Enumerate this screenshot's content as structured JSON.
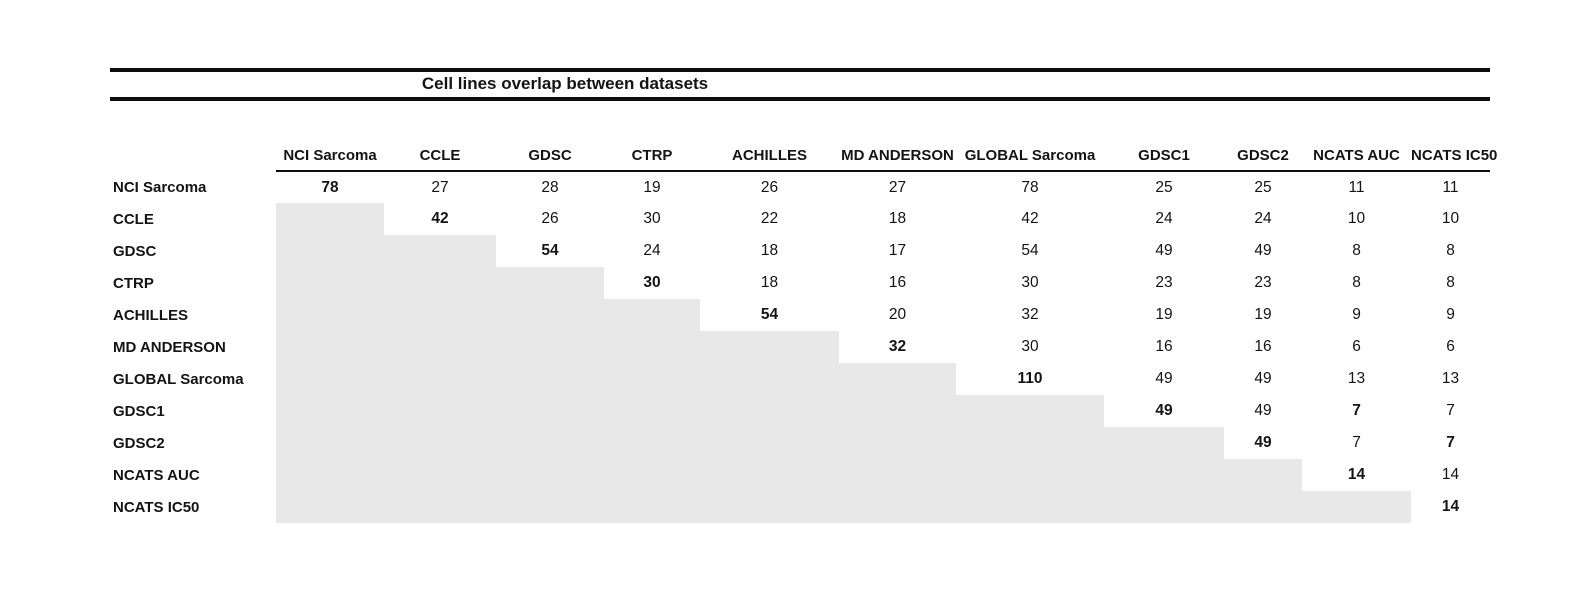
{
  "title": "Cell lines overlap between datasets",
  "table": {
    "columns": [
      "NCI Sarcoma",
      "CCLE",
      "GDSC",
      "CTRP",
      "ACHILLES",
      "MD ANDERSON",
      "GLOBAL Sarcoma",
      "GDSC1",
      "GDSC2",
      "NCATS AUC",
      "NCATS IC50"
    ],
    "rows": [
      {
        "label": "NCI Sarcoma",
        "values": [
          "78",
          "27",
          "28",
          "19",
          "26",
          "27",
          "78",
          "25",
          "25",
          "11",
          "11"
        ],
        "bold_cols": [
          0
        ]
      },
      {
        "label": "CCLE",
        "values": [
          null,
          "42",
          "26",
          "30",
          "22",
          "18",
          "42",
          "24",
          "24",
          "10",
          "10"
        ],
        "bold_cols": [
          1
        ]
      },
      {
        "label": "GDSC",
        "values": [
          null,
          null,
          "54",
          "24",
          "18",
          "17",
          "54",
          "49",
          "49",
          "8",
          "8"
        ],
        "bold_cols": [
          2
        ]
      },
      {
        "label": "CTRP",
        "values": [
          null,
          null,
          null,
          "30",
          "18",
          "16",
          "30",
          "23",
          "23",
          "8",
          "8"
        ],
        "bold_cols": [
          3
        ]
      },
      {
        "label": "ACHILLES",
        "values": [
          null,
          null,
          null,
          null,
          "54",
          "20",
          "32",
          "19",
          "19",
          "9",
          "9"
        ],
        "bold_cols": [
          4
        ]
      },
      {
        "label": "MD ANDERSON",
        "values": [
          null,
          null,
          null,
          null,
          null,
          "32",
          "30",
          "16",
          "16",
          "6",
          "6"
        ],
        "bold_cols": [
          5
        ]
      },
      {
        "label": "GLOBAL Sarcoma",
        "values": [
          null,
          null,
          null,
          null,
          null,
          null,
          "110",
          "49",
          "49",
          "13",
          "13"
        ],
        "bold_cols": [
          6
        ]
      },
      {
        "label": "GDSC1",
        "values": [
          null,
          null,
          null,
          null,
          null,
          null,
          null,
          "49",
          "49",
          "7",
          "7"
        ],
        "bold_cols": [
          7,
          9
        ]
      },
      {
        "label": "GDSC2",
        "values": [
          null,
          null,
          null,
          null,
          null,
          null,
          null,
          null,
          "49",
          "7",
          "7"
        ],
        "bold_cols": [
          8,
          10
        ]
      },
      {
        "label": "NCATS AUC",
        "values": [
          null,
          null,
          null,
          null,
          null,
          null,
          null,
          null,
          null,
          "14",
          "14"
        ],
        "bold_cols": [
          9
        ]
      },
      {
        "label": "NCATS IC50",
        "values": [
          null,
          null,
          null,
          null,
          null,
          null,
          null,
          null,
          null,
          null,
          "14"
        ],
        "bold_cols": [
          10
        ]
      }
    ]
  },
  "colors": {
    "shaded_cell": "#e8e8e8",
    "rule": "#0d0d0d",
    "text": "#141414"
  }
}
